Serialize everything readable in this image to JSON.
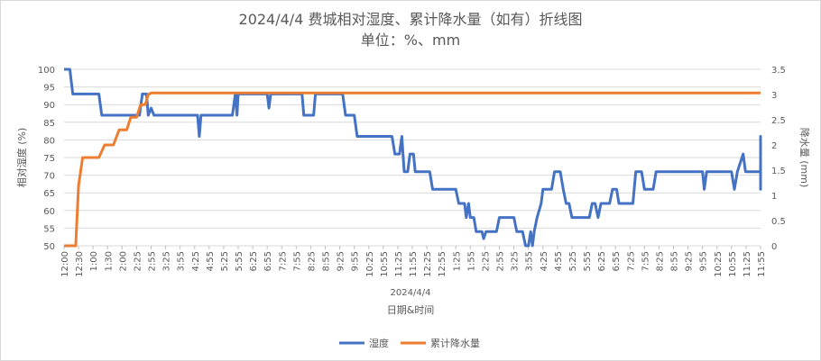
{
  "chart_data": {
    "type": "line",
    "title": "2024/4/4 费城相对湿度、累计降水量（如有）折线图",
    "subtitle": "单位：%、mm",
    "xlabel_group": "2024/4/4",
    "xlabel": "日期&时间",
    "ylabel_left": "相对湿度 (%)",
    "ylabel_right": "降水量 (mm)",
    "ylim_left": [
      50,
      100
    ],
    "ylim_right": [
      0,
      3.5
    ],
    "yticks_left": [
      "50",
      "55",
      "60",
      "65",
      "70",
      "75",
      "80",
      "85",
      "90",
      "95",
      "100"
    ],
    "yticks_right": [
      "0",
      "0.5",
      "1",
      "1.5",
      "2",
      "2.5",
      "3",
      "3.5"
    ],
    "xticks": [
      "12:00",
      "12:30",
      "1:00",
      "1:30",
      "2:00",
      "2:25",
      "2:55",
      "3:25",
      "3:55",
      "4:25",
      "4:55",
      "5:25",
      "5:55",
      "6:25",
      "6:55",
      "7:25",
      "7:55",
      "8:25",
      "8:55",
      "9:25",
      "9:55",
      "10:25",
      "10:55",
      "11:25",
      "11:55",
      "12:25",
      "12:55",
      "1:25",
      "1:55",
      "2:25",
      "2:55",
      "3:25",
      "3:55",
      "4:25",
      "4:55",
      "5:25",
      "5:55",
      "6:25",
      "6:55",
      "7:25",
      "7:55",
      "8:25",
      "8:55",
      "9:25",
      "9:55",
      "10:25",
      "10:55",
      "11:25",
      "11:55"
    ],
    "grid": true,
    "legend_position": "bottom",
    "series": [
      {
        "name": "湿度",
        "axis": "left",
        "color": "#4472c4",
        "points": [
          [
            0,
            100
          ],
          [
            0.1,
            100
          ],
          [
            0.15,
            93
          ],
          [
            0.6,
            93
          ],
          [
            0.65,
            87
          ],
          [
            1.3,
            87
          ],
          [
            1.35,
            93
          ],
          [
            1.42,
            93
          ],
          [
            1.45,
            87
          ],
          [
            1.5,
            89
          ],
          [
            1.55,
            87
          ],
          [
            2.3,
            87
          ],
          [
            2.33,
            81
          ],
          [
            2.36,
            87
          ],
          [
            2.9,
            87
          ],
          [
            2.95,
            93
          ],
          [
            2.98,
            87
          ],
          [
            3.0,
            93
          ],
          [
            3.5,
            93
          ],
          [
            3.53,
            89
          ],
          [
            3.56,
            93
          ],
          [
            4.1,
            93
          ],
          [
            4.13,
            87
          ],
          [
            4.3,
            87
          ],
          [
            4.33,
            93
          ],
          [
            4.8,
            93
          ],
          [
            4.85,
            87
          ],
          [
            5.0,
            87
          ],
          [
            5.05,
            81
          ],
          [
            5.65,
            81
          ],
          [
            5.7,
            76
          ],
          [
            5.78,
            76
          ],
          [
            5.82,
            81
          ],
          [
            5.86,
            71
          ],
          [
            5.92,
            71
          ],
          [
            5.96,
            76
          ],
          [
            6.02,
            76
          ],
          [
            6.05,
            71
          ],
          [
            6.3,
            71
          ],
          [
            6.35,
            66
          ],
          [
            6.75,
            66
          ],
          [
            6.8,
            62
          ],
          [
            6.9,
            62
          ],
          [
            6.93,
            58
          ],
          [
            6.97,
            62
          ],
          [
            7.0,
            58
          ],
          [
            7.06,
            58
          ],
          [
            7.1,
            54
          ],
          [
            7.2,
            54
          ],
          [
            7.23,
            52
          ],
          [
            7.27,
            54
          ],
          [
            7.45,
            54
          ],
          [
            7.5,
            58
          ],
          [
            7.75,
            58
          ],
          [
            7.8,
            54
          ],
          [
            7.9,
            54
          ],
          [
            7.95,
            50
          ],
          [
            8.0,
            50
          ],
          [
            8.04,
            54
          ],
          [
            8.07,
            50
          ],
          [
            8.1,
            54
          ],
          [
            8.15,
            58
          ],
          [
            8.22,
            62
          ],
          [
            8.25,
            66
          ],
          [
            8.4,
            66
          ],
          [
            8.45,
            71
          ],
          [
            8.55,
            71
          ],
          [
            8.6,
            66
          ],
          [
            8.65,
            62
          ],
          [
            8.7,
            62
          ],
          [
            8.75,
            58
          ],
          [
            9.05,
            58
          ],
          [
            9.1,
            62
          ],
          [
            9.15,
            62
          ],
          [
            9.2,
            58
          ],
          [
            9.25,
            62
          ],
          [
            9.4,
            62
          ],
          [
            9.45,
            66
          ],
          [
            9.52,
            66
          ],
          [
            9.56,
            62
          ],
          [
            9.8,
            62
          ],
          [
            9.85,
            71
          ],
          [
            9.95,
            71
          ],
          [
            10.0,
            66
          ],
          [
            10.15,
            66
          ],
          [
            10.2,
            71
          ],
          [
            11.0,
            71
          ],
          [
            11.03,
            66
          ],
          [
            11.07,
            71
          ],
          [
            11.5,
            71
          ],
          [
            11.55,
            66
          ],
          [
            11.6,
            71
          ],
          [
            11.7,
            76
          ],
          [
            11.74,
            71
          ],
          [
            12.3,
            71
          ],
          [
            12.35,
            66
          ],
          [
            12.4,
            66
          ],
          [
            12.45,
            71
          ],
          [
            12.85,
            71
          ],
          [
            12.9,
            76
          ],
          [
            13.5,
            76
          ],
          [
            13.55,
            81
          ],
          [
            13.65,
            81
          ],
          [
            13.7,
            76
          ],
          [
            13.85,
            76
          ]
        ]
      },
      {
        "name": "累计降水量",
        "axis": "right",
        "color": "#ed7d31",
        "points": [
          [
            0,
            0
          ],
          [
            0.2,
            0
          ],
          [
            0.25,
            1.2
          ],
          [
            0.32,
            1.75
          ],
          [
            0.6,
            1.75
          ],
          [
            0.7,
            2.0
          ],
          [
            0.85,
            2.0
          ],
          [
            0.95,
            2.3
          ],
          [
            1.08,
            2.3
          ],
          [
            1.15,
            2.55
          ],
          [
            1.25,
            2.55
          ],
          [
            1.32,
            2.8
          ],
          [
            1.4,
            2.8
          ],
          [
            1.45,
            3.0
          ],
          [
            1.5,
            3.03
          ],
          [
            13.85,
            3.03
          ]
        ]
      }
    ]
  }
}
